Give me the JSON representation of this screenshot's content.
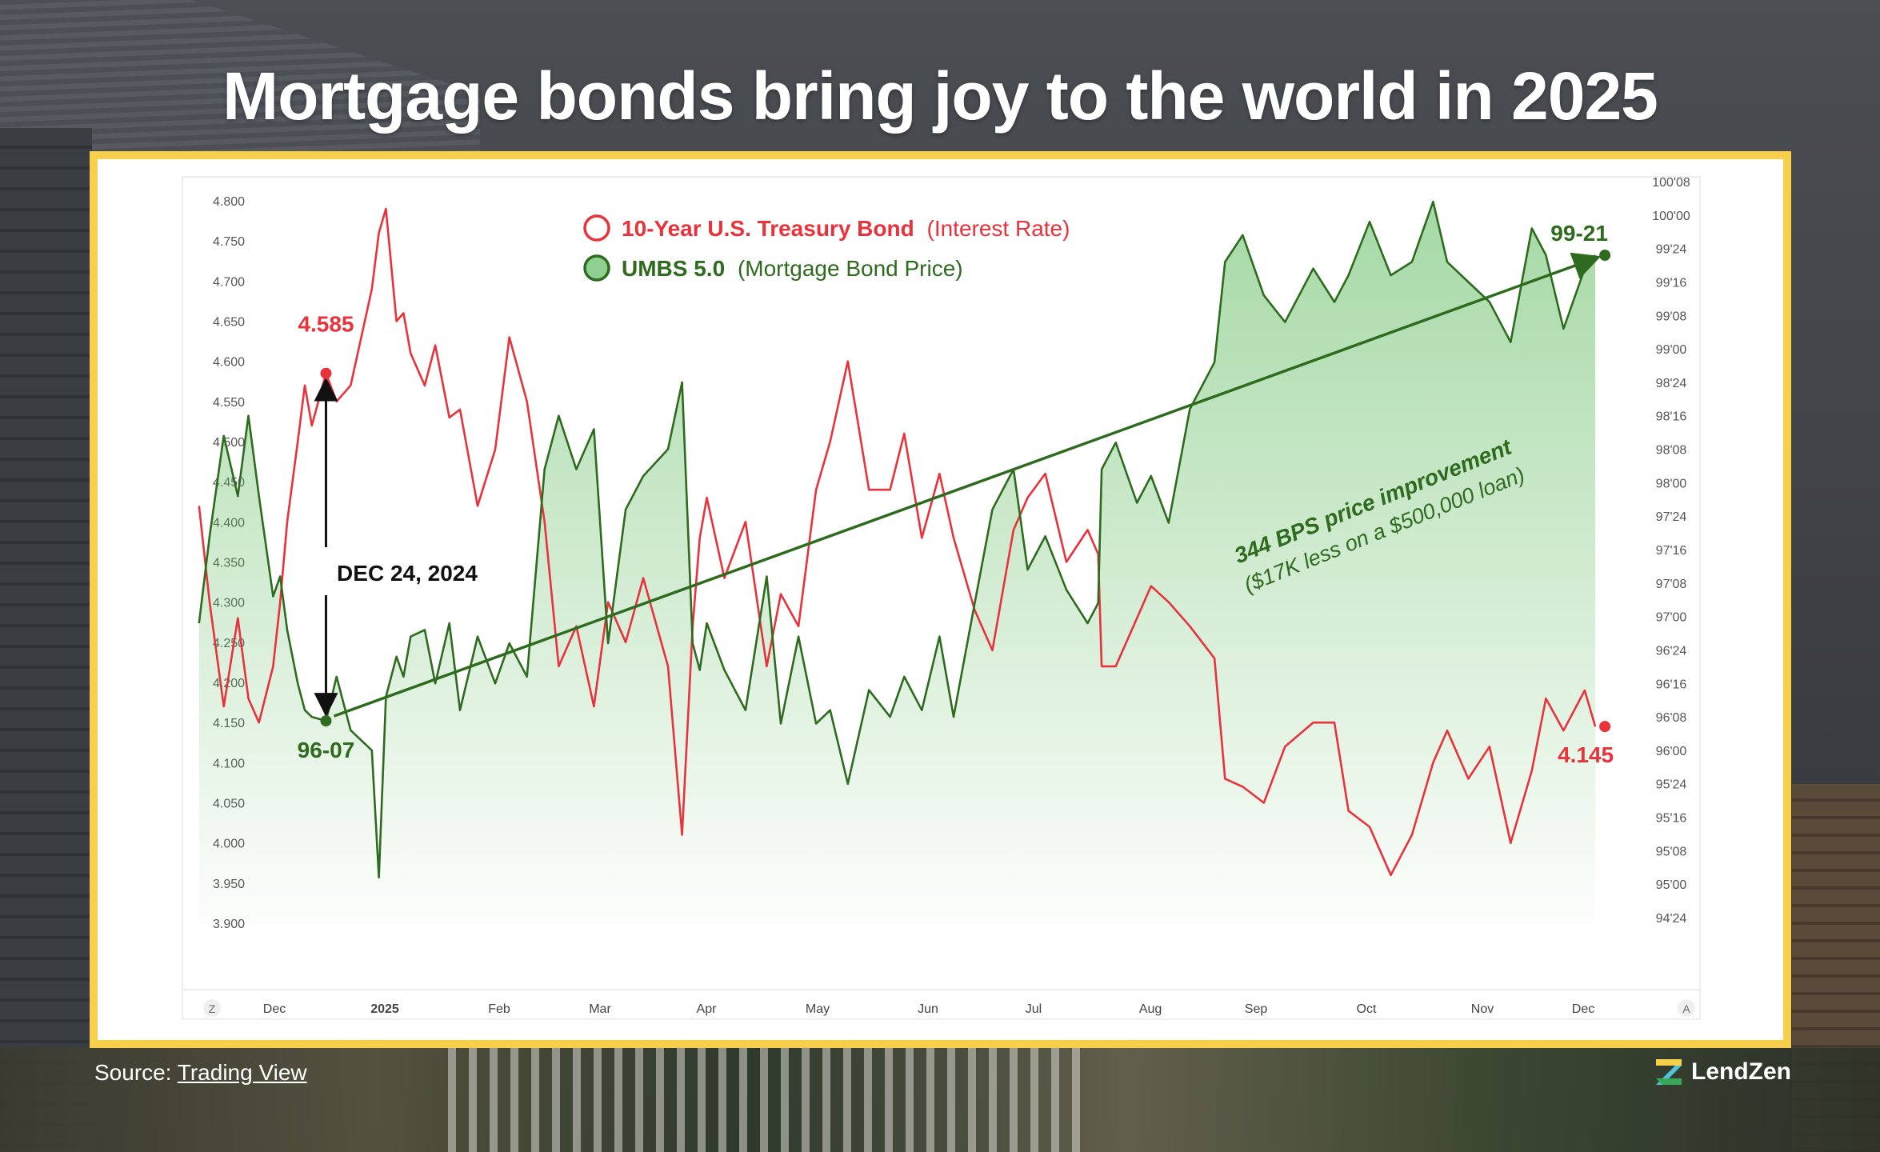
{
  "title": "Mortgage bonds bring joy to the world in 2025",
  "source_label": "Source:",
  "source_link": "Trading View",
  "brand": "LendZen",
  "colors": {
    "treasury": "#e8323c",
    "umbs": "#2e6b1f",
    "frame": "#f7cf4a"
  },
  "chart_data": {
    "type": "line",
    "title": "",
    "x_ticks": [
      "Dec",
      "2025",
      "Feb",
      "Mar",
      "Apr",
      "May",
      "Jun",
      "Jul",
      "Aug",
      "Sep",
      "Oct",
      "Nov",
      "Dec"
    ],
    "x_corner_left": "Z",
    "x_corner_right": "A",
    "left_axis": {
      "ylim": [
        3.9,
        4.8
      ],
      "ticks": [
        "4.800",
        "4.750",
        "4.700",
        "4.650",
        "4.600",
        "4.550",
        "4.500",
        "4.450",
        "4.400",
        "4.350",
        "4.300",
        "4.250",
        "4.200",
        "4.150",
        "4.100",
        "4.050",
        "4.000",
        "3.950",
        "3.900"
      ]
    },
    "right_axis": {
      "ylim": [
        94.75,
        100.25
      ],
      "ticks": [
        "100'08",
        "100'00",
        "99'24",
        "99'16",
        "99'08",
        "99'00",
        "98'24",
        "98'16",
        "98'08",
        "98'00",
        "97'24",
        "97'16",
        "97'08",
        "97'00",
        "96'24",
        "96'16",
        "96'08",
        "96'00",
        "95'24",
        "95'16",
        "95'08",
        "95'00",
        "94'24"
      ]
    },
    "legend": [
      {
        "label": "10-Year U.S. Treasury Bond",
        "sub": "(Interest Rate)"
      },
      {
        "label": "UMBS 5.0",
        "sub": "(Mortgage Bond Price)"
      }
    ],
    "x_domain": [
      "2024-11-16",
      "2025-12-31"
    ],
    "series": [
      {
        "name": "10-Year U.S. Treasury Bond",
        "axis": "left",
        "x": [
          "2024-11-18",
          "2024-11-21",
          "2024-11-25",
          "2024-11-29",
          "2024-12-02",
          "2024-12-05",
          "2024-12-09",
          "2024-12-11",
          "2024-12-13",
          "2024-12-16",
          "2024-12-18",
          "2024-12-20",
          "2024-12-24",
          "2024-12-27",
          "2024-12-31",
          "2025-01-06",
          "2025-01-08",
          "2025-01-10",
          "2025-01-13",
          "2025-01-15",
          "2025-01-17",
          "2025-01-21",
          "2025-01-24",
          "2025-01-28",
          "2025-01-31",
          "2025-02-05",
          "2025-02-10",
          "2025-02-14",
          "2025-02-19",
          "2025-02-24",
          "2025-02-28",
          "2025-03-05",
          "2025-03-10",
          "2025-03-14",
          "2025-03-19",
          "2025-03-24",
          "2025-03-31",
          "2025-04-04",
          "2025-04-07",
          "2025-04-09",
          "2025-04-11",
          "2025-04-16",
          "2025-04-22",
          "2025-04-28",
          "2025-05-02",
          "2025-05-07",
          "2025-05-12",
          "2025-05-16",
          "2025-05-21",
          "2025-05-27",
          "2025-06-02",
          "2025-06-06",
          "2025-06-11",
          "2025-06-16",
          "2025-06-20",
          "2025-06-26",
          "2025-07-01",
          "2025-07-07",
          "2025-07-11",
          "2025-07-16",
          "2025-07-22",
          "2025-07-28",
          "2025-07-31",
          "2025-08-01",
          "2025-08-05",
          "2025-08-11",
          "2025-08-15",
          "2025-08-20",
          "2025-08-26",
          "2025-09-02",
          "2025-09-05",
          "2025-09-10",
          "2025-09-16",
          "2025-09-22",
          "2025-09-30",
          "2025-10-06",
          "2025-10-10",
          "2025-10-16",
          "2025-10-22",
          "2025-10-28",
          "2025-11-03",
          "2025-11-07",
          "2025-11-13",
          "2025-11-19",
          "2025-11-25",
          "2025-12-01",
          "2025-12-05",
          "2025-12-10",
          "2025-12-16",
          "2025-12-19"
        ],
        "values": [
          4.42,
          4.3,
          4.17,
          4.28,
          4.18,
          4.15,
          4.22,
          4.3,
          4.4,
          4.5,
          4.57,
          4.52,
          4.585,
          4.55,
          4.57,
          4.69,
          4.76,
          4.79,
          4.65,
          4.66,
          4.61,
          4.57,
          4.62,
          4.53,
          4.54,
          4.42,
          4.49,
          4.63,
          4.55,
          4.4,
          4.22,
          4.27,
          4.17,
          4.3,
          4.25,
          4.33,
          4.22,
          4.01,
          4.27,
          4.38,
          4.43,
          4.33,
          4.4,
          4.22,
          4.31,
          4.27,
          4.44,
          4.5,
          4.6,
          4.44,
          4.44,
          4.51,
          4.38,
          4.46,
          4.38,
          4.29,
          4.24,
          4.39,
          4.43,
          4.46,
          4.35,
          4.39,
          4.36,
          4.22,
          4.22,
          4.28,
          4.32,
          4.3,
          4.27,
          4.23,
          4.08,
          4.07,
          4.05,
          4.12,
          4.15,
          4.15,
          4.04,
          4.02,
          3.96,
          4.01,
          4.1,
          4.14,
          4.08,
          4.12,
          4.0,
          4.09,
          4.18,
          4.14,
          4.19,
          4.145
        ]
      },
      {
        "name": "UMBS 5.0",
        "axis": "right",
        "x": [
          "2024-11-18",
          "2024-11-21",
          "2024-11-25",
          "2024-11-29",
          "2024-12-02",
          "2024-12-05",
          "2024-12-09",
          "2024-12-11",
          "2024-12-13",
          "2024-12-16",
          "2024-12-18",
          "2024-12-20",
          "2024-12-24",
          "2024-12-27",
          "2024-12-31",
          "2025-01-06",
          "2025-01-08",
          "2025-01-10",
          "2025-01-13",
          "2025-01-15",
          "2025-01-17",
          "2025-01-21",
          "2025-01-24",
          "2025-01-28",
          "2025-01-31",
          "2025-02-05",
          "2025-02-10",
          "2025-02-14",
          "2025-02-19",
          "2025-02-24",
          "2025-02-28",
          "2025-03-05",
          "2025-03-10",
          "2025-03-14",
          "2025-03-19",
          "2025-03-24",
          "2025-03-31",
          "2025-04-04",
          "2025-04-07",
          "2025-04-09",
          "2025-04-11",
          "2025-04-16",
          "2025-04-22",
          "2025-04-28",
          "2025-05-02",
          "2025-05-07",
          "2025-05-12",
          "2025-05-16",
          "2025-05-21",
          "2025-05-27",
          "2025-06-02",
          "2025-06-06",
          "2025-06-11",
          "2025-06-16",
          "2025-06-20",
          "2025-06-26",
          "2025-07-01",
          "2025-07-07",
          "2025-07-11",
          "2025-07-16",
          "2025-07-22",
          "2025-07-28",
          "2025-07-31",
          "2025-08-01",
          "2025-08-05",
          "2025-08-11",
          "2025-08-15",
          "2025-08-20",
          "2025-08-26",
          "2025-09-02",
          "2025-09-05",
          "2025-09-10",
          "2025-09-16",
          "2025-09-22",
          "2025-09-30",
          "2025-10-06",
          "2025-10-10",
          "2025-10-16",
          "2025-10-22",
          "2025-10-28",
          "2025-11-03",
          "2025-11-07",
          "2025-11-13",
          "2025-11-19",
          "2025-11-25",
          "2025-12-01",
          "2025-12-05",
          "2025-12-10",
          "2025-12-16",
          "2025-12-19"
        ],
        "values": [
          96.95,
          97.6,
          98.35,
          97.9,
          98.5,
          97.9,
          97.15,
          97.3,
          96.9,
          96.5,
          96.3,
          96.25,
          96.22,
          96.55,
          96.15,
          96.0,
          95.05,
          96.4,
          96.7,
          96.55,
          96.85,
          96.9,
          96.5,
          96.95,
          96.3,
          96.85,
          96.5,
          96.8,
          96.55,
          98.1,
          98.5,
          98.1,
          98.4,
          96.8,
          97.8,
          98.05,
          98.25,
          98.75,
          96.8,
          96.6,
          96.95,
          96.6,
          96.3,
          97.3,
          96.2,
          96.85,
          96.2,
          96.3,
          95.75,
          96.45,
          96.25,
          96.55,
          96.3,
          96.85,
          96.25,
          97.1,
          97.8,
          98.1,
          97.35,
          97.6,
          97.2,
          96.95,
          97.1,
          98.1,
          98.3,
          97.85,
          98.05,
          97.7,
          98.55,
          98.9,
          99.65,
          99.85,
          99.4,
          99.2,
          99.6,
          99.35,
          99.55,
          99.95,
          99.55,
          99.65,
          100.1,
          99.65,
          99.5,
          99.35,
          99.05,
          99.9,
          99.7,
          99.15,
          99.6,
          99.7
        ]
      }
    ],
    "annotations": {
      "treasury_start": "4.585",
      "treasury_end": "4.145",
      "umbs_start": "96-07",
      "umbs_end": "99-21",
      "date_label": "DEC 24, 2024",
      "trend_main": "344 BPS price improvement",
      "trend_sub": "($17K less on a $500,000 loan)"
    }
  }
}
